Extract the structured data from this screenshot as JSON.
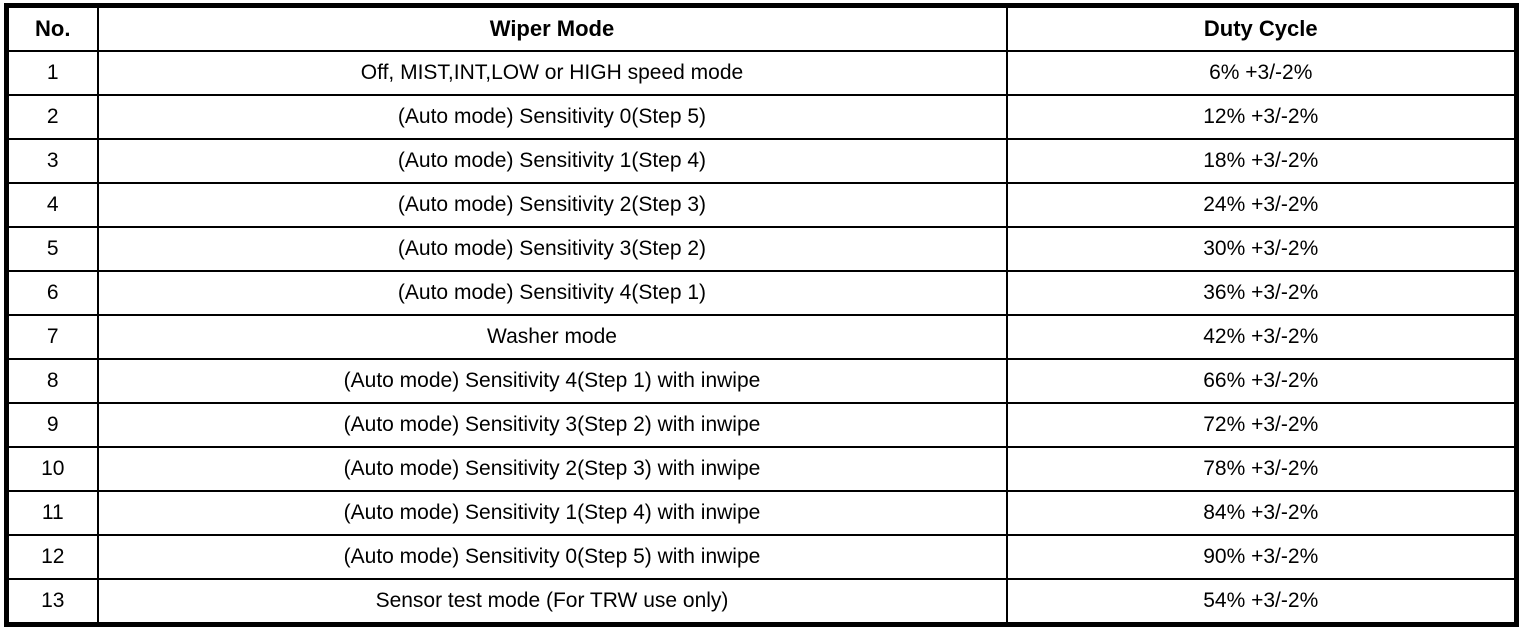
{
  "colors": {
    "border": "#000000",
    "background": "#ffffff",
    "text": "#000000"
  },
  "table": {
    "headers": {
      "no": "No.",
      "mode": "Wiper Mode",
      "duty": "Duty Cycle"
    },
    "rows": [
      {
        "no": "1",
        "mode": "Off, MIST,INT,LOW or HIGH speed mode",
        "duty": "6% +3/-2%"
      },
      {
        "no": "2",
        "mode": "(Auto mode) Sensitivity 0(Step 5)",
        "duty": "12% +3/-2%"
      },
      {
        "no": "3",
        "mode": "(Auto mode) Sensitivity 1(Step 4)",
        "duty": "18% +3/-2%"
      },
      {
        "no": "4",
        "mode": "(Auto mode) Sensitivity 2(Step 3)",
        "duty": "24% +3/-2%"
      },
      {
        "no": "5",
        "mode": "(Auto mode) Sensitivity 3(Step 2)",
        "duty": "30% +3/-2%"
      },
      {
        "no": "6",
        "mode": "(Auto mode) Sensitivity 4(Step 1)",
        "duty": "36% +3/-2%"
      },
      {
        "no": "7",
        "mode": "Washer mode",
        "duty": "42% +3/-2%"
      },
      {
        "no": "8",
        "mode": "(Auto mode) Sensitivity 4(Step 1) with inwipe",
        "duty": "66% +3/-2%"
      },
      {
        "no": "9",
        "mode": "(Auto mode) Sensitivity 3(Step 2) with inwipe",
        "duty": "72% +3/-2%"
      },
      {
        "no": "10",
        "mode": "(Auto mode) Sensitivity 2(Step 3) with inwipe",
        "duty": "78% +3/-2%"
      },
      {
        "no": "11",
        "mode": "(Auto mode) Sensitivity 1(Step 4) with inwipe",
        "duty": "84% +3/-2%"
      },
      {
        "no": "12",
        "mode": "(Auto mode) Sensitivity 0(Step 5) with inwipe",
        "duty": "90% +3/-2%"
      },
      {
        "no": "13",
        "mode": "Sensor test mode (For TRW use only)",
        "duty": "54% +3/-2%"
      }
    ]
  }
}
